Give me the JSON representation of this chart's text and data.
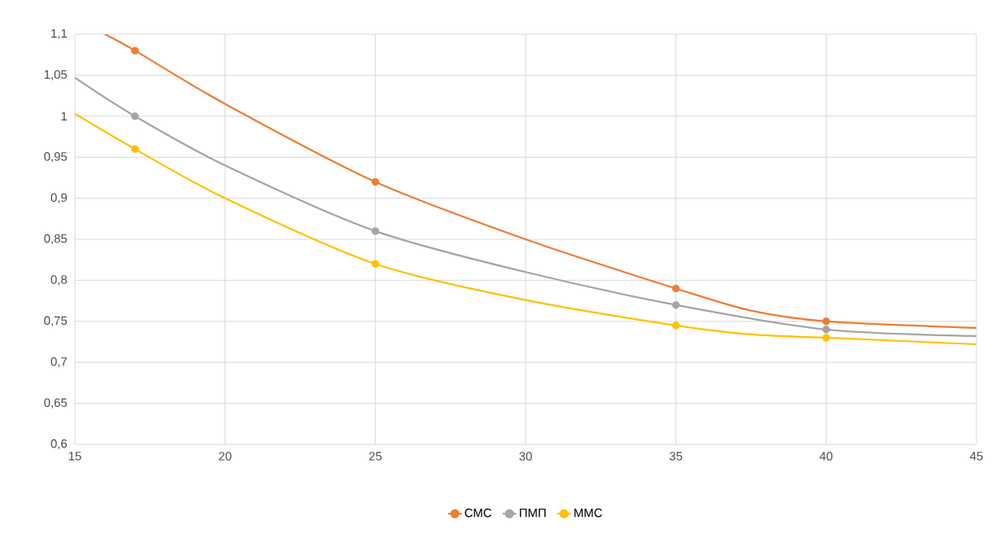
{
  "chart_data": {
    "type": "line",
    "xlim": [
      15,
      45
    ],
    "ylim": [
      0.6,
      1.1
    ],
    "xticks": [
      15,
      20,
      25,
      30,
      35,
      40,
      45
    ],
    "yticks": [
      {
        "value": 0.6,
        "label": "0,6"
      },
      {
        "value": 0.65,
        "label": "0,65"
      },
      {
        "value": 0.7,
        "label": "0,7"
      },
      {
        "value": 0.75,
        "label": "0,75"
      },
      {
        "value": 0.8,
        "label": "0,8"
      },
      {
        "value": 0.85,
        "label": "0,85"
      },
      {
        "value": 0.9,
        "label": "0,9"
      },
      {
        "value": 0.95,
        "label": "0,95"
      },
      {
        "value": 1,
        "label": "1"
      },
      {
        "value": 1.05,
        "label": "1,05"
      },
      {
        "value": 1.1,
        "label": "1,1"
      }
    ],
    "grid": true,
    "legend": "bottom",
    "series": [
      {
        "marker": "none",
        "color": "#ed7d31",
        "x": [
          16,
          17,
          20,
          25,
          30,
          35,
          37.5,
          40,
          45
        ],
        "values": [
          1.1,
          1.08,
          1.015,
          0.92,
          0.85,
          0.79,
          0.763,
          0.75,
          0.742
        ]
      },
      {
        "marker": "none",
        "color": "#a5a5a5",
        "x": [
          15,
          17,
          20,
          25,
          30,
          35,
          40,
          45
        ],
        "values": [
          1.047,
          1.0,
          0.94,
          0.86,
          0.81,
          0.77,
          0.74,
          0.732
        ]
      },
      {
        "marker": "none",
        "color": "#ffc000",
        "x": [
          15,
          17,
          20,
          25,
          30,
          35,
          37.5,
          40,
          45
        ],
        "values": [
          1.003,
          0.96,
          0.9,
          0.82,
          0.776,
          0.745,
          0.734,
          0.73,
          0.722
        ]
      },
      {
        "type": "scatter",
        "marker": "circle",
        "name": "СМС",
        "color": "#ed7d31",
        "x": [
          17,
          25,
          35,
          40
        ],
        "values": [
          1.08,
          0.92,
          0.79,
          0.75
        ]
      },
      {
        "type": "scatter",
        "marker": "circle",
        "name": "ПМП",
        "color": "#a5a5a5",
        "x": [
          17,
          25,
          35,
          40
        ],
        "values": [
          1.0,
          0.86,
          0.77,
          0.74
        ]
      },
      {
        "type": "scatter",
        "marker": "circle",
        "name": "ММС",
        "color": "#ffc000",
        "x": [
          17,
          25,
          35,
          40
        ],
        "values": [
          0.96,
          0.82,
          0.745,
          0.73
        ]
      }
    ]
  }
}
